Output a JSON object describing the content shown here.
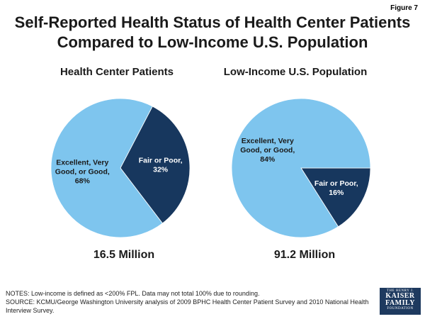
{
  "figure_label": "Figure 7",
  "title_line1": "Self-Reported Health Status of Health Center Patients",
  "title_line2": "Compared to Low-Income U.S. Population",
  "colors": {
    "excellent": "#7ec5ee",
    "fair": "#17375e",
    "label_dark": "#1a1a1a",
    "label_light": "#ffffff"
  },
  "chart_data": [
    {
      "type": "pie",
      "title": "Health Center Patients",
      "total_label": "16.5 Million",
      "slices": [
        {
          "name_lines": [
            "Excellent, Very",
            "Good, or Good,"
          ],
          "value": 68,
          "value_label": "68%"
        },
        {
          "name_lines": [
            "Fair or Poor,"
          ],
          "value": 32,
          "value_label": "32%"
        }
      ]
    },
    {
      "type": "pie",
      "title": "Low-Income U.S. Population",
      "total_label": "91.2 Million",
      "slices": [
        {
          "name_lines": [
            "Excellent, Very",
            "Good, or Good,"
          ],
          "value": 84,
          "value_label": "84%"
        },
        {
          "name_lines": [
            "Fair or Poor,"
          ],
          "value": 16,
          "value_label": "16%"
        }
      ]
    }
  ],
  "notes_line1": "NOTES: Low-income is defined as <200% FPL. Data may not total 100% due to rounding.",
  "notes_line2": "SOURCE: KCMU/George Washington University analysis of 2009 BPHC Health Center Patient Survey and 2010 National Health Interview Survey.",
  "logo": {
    "line1": "THE HENRY J.",
    "line2a": "KAISER",
    "line2b": "FAMILY",
    "line3": "FOUNDATION"
  }
}
